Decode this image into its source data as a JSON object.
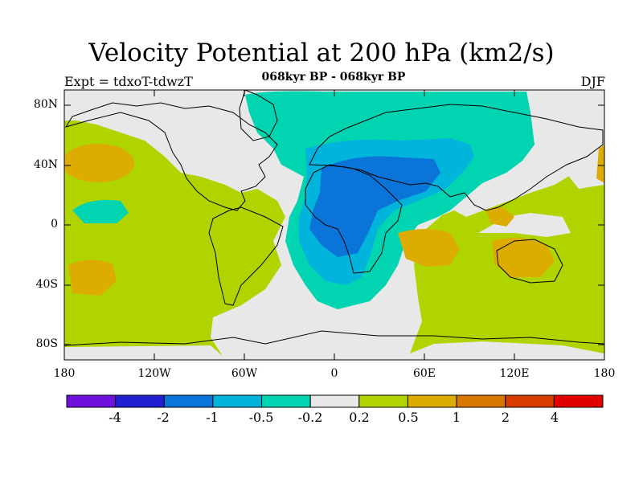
{
  "title": "Velocity Potential at 200 hPa (km2/s)",
  "subtitle": "068kyr BP - 068kyr BP",
  "left_label": "Expt = tdxoT-tdwzT",
  "right_label": "DJF",
  "map": {
    "lat_ticks": [
      "80N",
      "40N",
      "0",
      "40S",
      "80S"
    ],
    "lon_ticks": [
      "180",
      "120W",
      "60W",
      "0",
      "60E",
      "120E",
      "180"
    ]
  },
  "colorbar": {
    "levels": [
      "-4",
      "-2",
      "-1",
      "-0.5",
      "-0.2",
      "0.2",
      "0.5",
      "1",
      "2",
      "4"
    ],
    "colors": [
      "#7010dc",
      "#2020d0",
      "#0a74d8",
      "#00b4dc",
      "#00d4b0",
      "#e8e8e8",
      "#b0d400",
      "#dcac00",
      "#d87800",
      "#d83c00",
      "#e00000"
    ]
  }
}
